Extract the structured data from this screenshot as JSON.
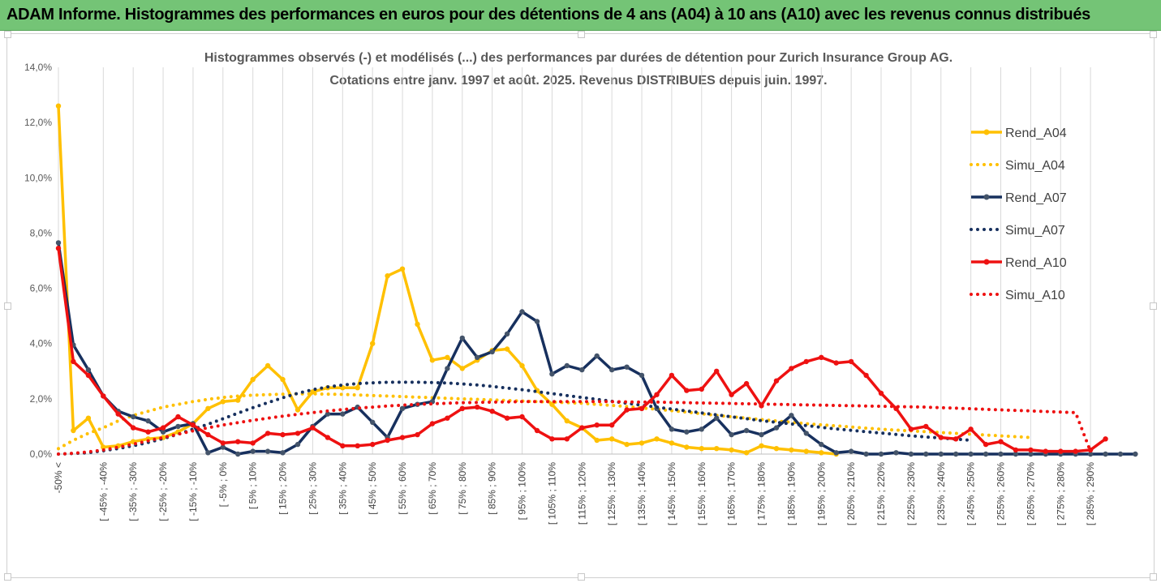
{
  "banner": {
    "title": "ADAM Informe. Histogrammes des performances en euros pour des détentions de 4 ans (A04) à 10 ans (A10) avec les revenus connus distribués",
    "color": "#74c476"
  },
  "chart_data": {
    "type": "line",
    "title": "Histogrammes observés (-) et modélisés (...) des performances par durées de détention pour Zurich Insurance Group AG.",
    "subtitle": "Cotations entre janv. 1997 et août. 2025. Revenus DISTRIBUES depuis juin. 1997.",
    "xlabel": "",
    "ylabel": "",
    "ylim": [
      0,
      14
    ],
    "y_ticks": [
      "0,0%",
      "2,0%",
      "4,0%",
      "6,0%",
      "8,0%",
      "10,0%",
      "12,0%",
      "14,0%"
    ],
    "grid": "vertical",
    "legend_position": "right",
    "x_tick_labels": [
      "-50% <",
      "[ -45% ; -40%",
      "[ -35% ; -30%",
      "[ -25% ; -20%",
      "[ -15% ; -10%",
      "[ -5% ; 0%",
      "[ 5% ; 10%",
      "[ 15% ; 20%",
      "[ 25% ; 30%",
      "[ 35% ; 40%",
      "[ 45% ; 50%",
      "[ 55% ; 60%",
      "[ 65% ; 70%",
      "[ 75% ; 80%",
      "[ 85% ; 90%",
      "[ 95% ; 100%",
      "[ 105% ; 110%",
      "[ 115% ; 120%",
      "[ 125% ; 130%",
      "[ 135% ; 140%",
      "[ 145% ; 150%",
      "[ 155% ; 160%",
      "[ 165% ; 170%",
      "[ 175% ; 180%",
      "[ 185% ; 190%",
      "[ 195% ; 200%",
      "[ 205% ; 210%",
      "[ 215% ; 220%",
      "[ 225% ; 230%",
      "[ 235% ; 240%",
      "[ 245% ; 250%",
      "[ 255% ; 260%",
      "[ 265% ; 270%",
      "[ 275% ; 280%",
      "[ 285% ; 290%"
    ],
    "series": [
      {
        "name": "Rend_A04",
        "style": "solid",
        "color": "#ffc000",
        "values": [
          12.6,
          0.85,
          1.3,
          0.25,
          0.3,
          0.45,
          0.55,
          0.6,
          0.8,
          1.1,
          1.65,
          1.9,
          1.95,
          2.7,
          3.2,
          2.7,
          1.6,
          2.25,
          2.4,
          2.4,
          2.4,
          4.0,
          6.45,
          6.7,
          4.7,
          3.4,
          3.5,
          3.1,
          3.4,
          3.75,
          3.8,
          3.2,
          2.3,
          1.8,
          1.2,
          0.95,
          0.5,
          0.55,
          0.35,
          0.4,
          0.55,
          0.4,
          0.25,
          0.2,
          0.2,
          0.15,
          0.05,
          0.3,
          0.2,
          0.15,
          0.1,
          0.05,
          0.0
        ]
      },
      {
        "name": "Simu_A04",
        "style": "dotted",
        "color": "#ffc000",
        "values": [
          0.2,
          0.5,
          0.75,
          0.95,
          1.2,
          1.4,
          1.55,
          1.7,
          1.8,
          1.9,
          1.98,
          2.05,
          2.1,
          2.13,
          2.15,
          2.17,
          2.18,
          2.18,
          2.17,
          2.16,
          2.14,
          2.12,
          2.1,
          2.08,
          2.06,
          2.04,
          2.02,
          2.0,
          1.98,
          1.96,
          1.94,
          1.92,
          1.9,
          1.88,
          1.86,
          1.84,
          1.8,
          1.76,
          1.72,
          1.67,
          1.62,
          1.57,
          1.52,
          1.46,
          1.4,
          1.35,
          1.3,
          1.25,
          1.2,
          1.15,
          1.1,
          1.06,
          1.02,
          0.98,
          0.94,
          0.9,
          0.87,
          0.84,
          0.81,
          0.78,
          0.75,
          0.72,
          0.69,
          0.66,
          0.63,
          0.6
        ]
      },
      {
        "name": "Rend_A07",
        "style": "solid",
        "color": "#17305e",
        "values": [
          7.65,
          3.95,
          3.05,
          2.1,
          1.55,
          1.35,
          1.2,
          0.8,
          1.0,
          1.1,
          0.05,
          0.25,
          0.0,
          0.1,
          0.1,
          0.05,
          0.35,
          1.0,
          1.45,
          1.45,
          1.7,
          1.15,
          0.6,
          1.65,
          1.8,
          1.9,
          3.1,
          4.2,
          3.5,
          3.7,
          4.35,
          5.15,
          4.8,
          2.9,
          3.2,
          3.05,
          3.55,
          3.05,
          3.15,
          2.85,
          1.65,
          0.9,
          0.8,
          0.9,
          1.3,
          0.7,
          0.85,
          0.7,
          0.95,
          1.4,
          0.75,
          0.35,
          0.05,
          0.1,
          0.0,
          0.0,
          0.05,
          0.0,
          0.0,
          0.0,
          0.0,
          0.0,
          0.0,
          0.0,
          0.0,
          0.0,
          0.0,
          0.0,
          0.0,
          0.0,
          0.0,
          0.0,
          0.0
        ]
      },
      {
        "name": "Simu_A07",
        "style": "dotted",
        "color": "#17305e",
        "values": [
          0.0,
          0.02,
          0.05,
          0.12,
          0.2,
          0.3,
          0.42,
          0.56,
          0.72,
          0.9,
          1.08,
          1.28,
          1.48,
          1.68,
          1.86,
          2.04,
          2.2,
          2.33,
          2.43,
          2.5,
          2.55,
          2.58,
          2.6,
          2.6,
          2.6,
          2.59,
          2.57,
          2.54,
          2.5,
          2.45,
          2.39,
          2.33,
          2.26,
          2.19,
          2.12,
          2.05,
          1.98,
          1.91,
          1.84,
          1.77,
          1.7,
          1.63,
          1.56,
          1.49,
          1.42,
          1.35,
          1.28,
          1.21,
          1.15,
          1.09,
          1.03,
          0.97,
          0.91,
          0.86,
          0.81,
          0.76,
          0.71,
          0.66,
          0.62,
          0.58,
          0.54,
          0.5
        ]
      },
      {
        "name": "Rend_A10",
        "style": "solid",
        "color": "#ee1111",
        "values": [
          7.45,
          3.35,
          2.85,
          2.1,
          1.45,
          0.95,
          0.8,
          0.95,
          1.35,
          1.05,
          0.7,
          0.4,
          0.45,
          0.4,
          0.75,
          0.7,
          0.75,
          0.95,
          0.6,
          0.3,
          0.3,
          0.35,
          0.5,
          0.6,
          0.7,
          1.1,
          1.3,
          1.65,
          1.7,
          1.55,
          1.3,
          1.35,
          0.85,
          0.55,
          0.55,
          0.95,
          1.05,
          1.05,
          1.6,
          1.65,
          2.15,
          2.85,
          2.3,
          2.35,
          3.0,
          2.15,
          2.55,
          1.75,
          2.65,
          3.1,
          3.35,
          3.5,
          3.3,
          3.35,
          2.85,
          2.2,
          1.65,
          0.9,
          1.0,
          0.6,
          0.55,
          0.9,
          0.35,
          0.45,
          0.15,
          0.15,
          0.1,
          0.1,
          0.1,
          0.15,
          0.55
        ]
      },
      {
        "name": "Simu_A10",
        "style": "dotted",
        "color": "#ee1111",
        "values": [
          0.0,
          0.03,
          0.08,
          0.15,
          0.25,
          0.36,
          0.48,
          0.6,
          0.72,
          0.84,
          0.95,
          1.05,
          1.14,
          1.22,
          1.3,
          1.37,
          1.44,
          1.5,
          1.56,
          1.61,
          1.66,
          1.7,
          1.74,
          1.77,
          1.8,
          1.82,
          1.84,
          1.86,
          1.87,
          1.88,
          1.89,
          1.9,
          1.9,
          1.9,
          1.9,
          1.9,
          1.9,
          1.9,
          1.89,
          1.88,
          1.88,
          1.87,
          1.86,
          1.85,
          1.84,
          1.83,
          1.82,
          1.81,
          1.8,
          1.79,
          1.78,
          1.77,
          1.76,
          1.75,
          1.74,
          1.73,
          1.72,
          1.71,
          1.7,
          1.68,
          1.66,
          1.64,
          1.62,
          1.6,
          1.58,
          1.56,
          1.54,
          1.52,
          1.5,
          0.1
        ]
      }
    ]
  }
}
